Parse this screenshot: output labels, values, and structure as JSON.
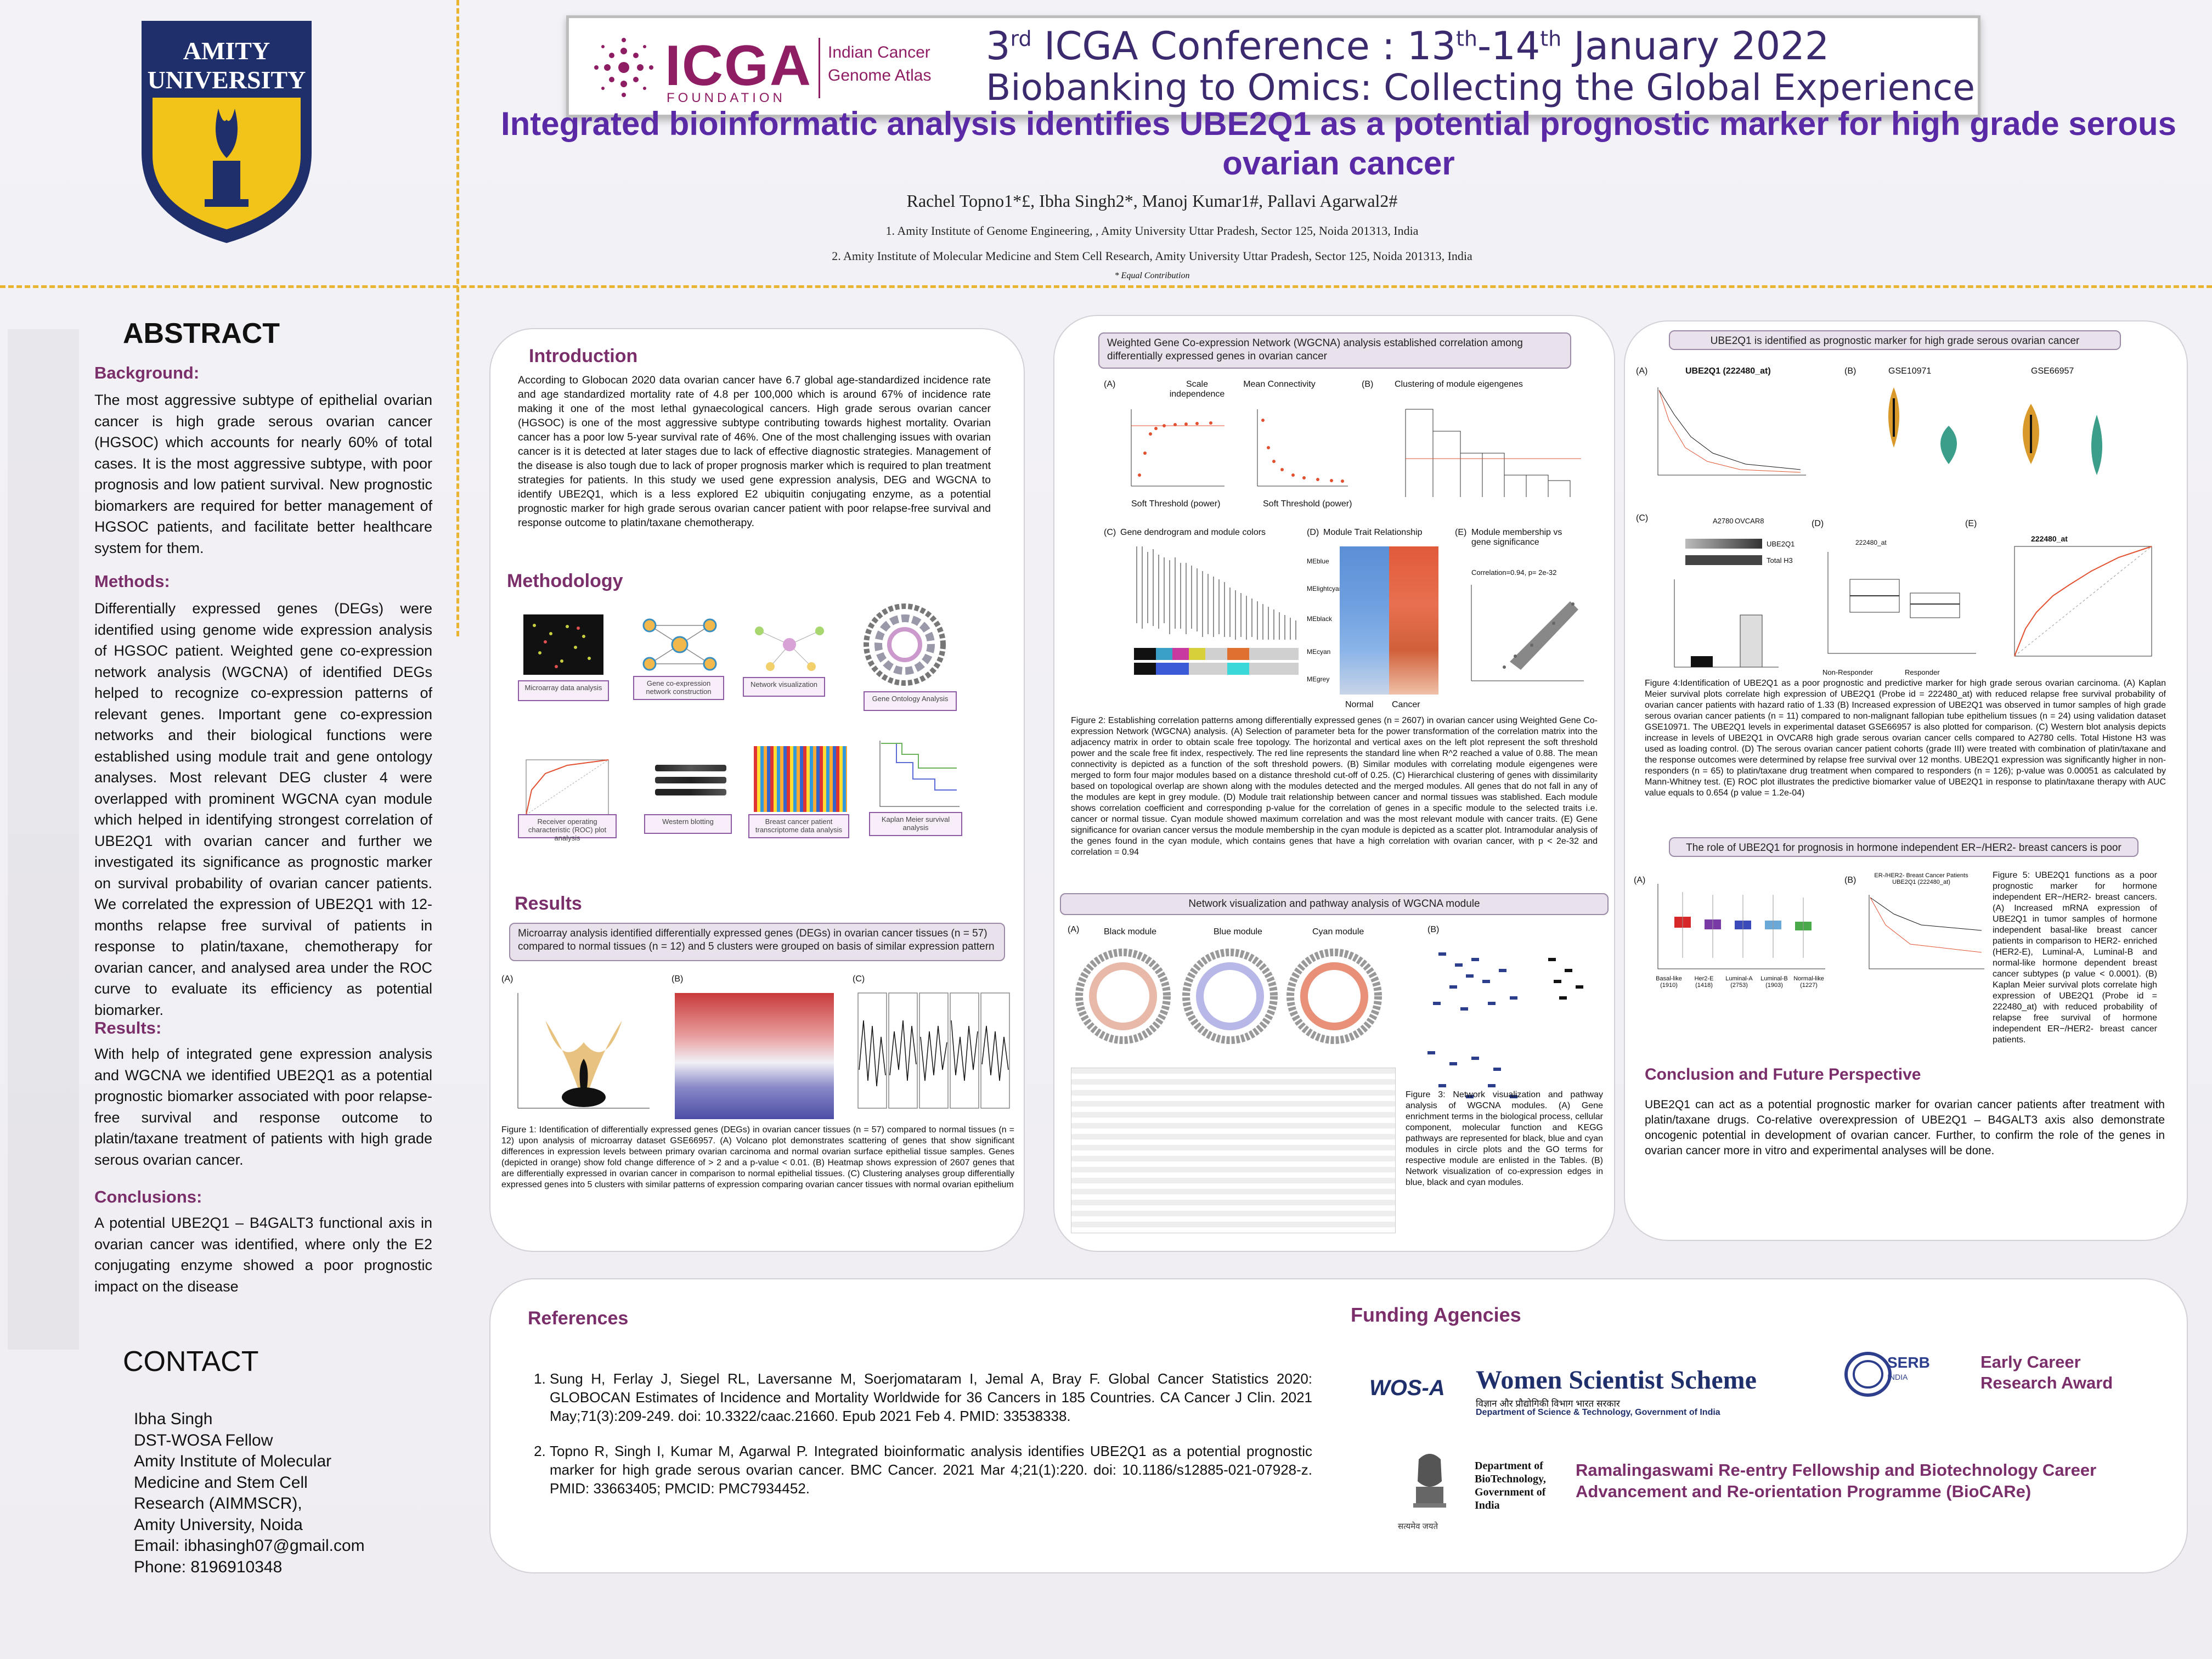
{
  "header": {
    "university": "AMITY UNIVERSITY",
    "icga_name": "ICGA",
    "icga_sub": "FOUNDATION",
    "icga_atlas_1": "Indian Cancer",
    "icga_atlas_2": "Genome Atlas",
    "conf_prefix": "3",
    "conf_sup1": "rd",
    "conf_mid": " ICGA Conference : 13",
    "conf_sup2": "th",
    "conf_mid2": "-14",
    "conf_sup3": "th",
    "conf_end": " January 2022",
    "conf_line2": "Biobanking to Omics: Collecting the Global Experience"
  },
  "title": "Integrated bioinformatic analysis identifies UBE2Q1 as a potential prognostic marker for high grade serous ovarian cancer",
  "authors": "Rachel Topno1*£, Ibha Singh2*, Manoj Kumar1#, Pallavi Agarwal2#",
  "affiliation1": "1. Amity Institute of Genome Engineering, , Amity University Uttar Pradesh, Sector 125, Noida 201313, India",
  "affiliation2": "2. Amity Institute of Molecular Medicine and Stem Cell Research, Amity University Uttar Pradesh, Sector 125, Noida 201313, India",
  "equal": "* Equal Contribution",
  "abstract": {
    "heading": "ABSTRACT",
    "background_h": "Background:",
    "background": "The most aggressive subtype of epithelial ovarian cancer is high grade serous ovarian cancer (HGSOC) which accounts for nearly 60% of total cases. It is the most aggressive subtype, with poor prognosis and low patient survival. New prognostic biomarkers are required for better management of HGSOC patients, and facilitate better healthcare system for them.",
    "methods_h": "Methods:",
    "methods": "Differentially expressed genes (DEGs) were identified using genome wide expression analysis of HGSOC patient. Weighted gene co-expression network analysis (WGCNA) of identified DEGs helped to recognize co-expression patterns of relevant genes. Important gene co-expression networks and their biological functions were established using module trait and gene ontology analyses. Most relevant DEG cluster 4 were overlapped with prominent WGCNA cyan module which helped in identifying strongest correlation of UBE2Q1 with ovarian cancer and further we investigated its significance as prognostic marker on survival probability of ovarian cancer patients. We correlated the expression of UBE2Q1 with 12-months relapse free survival of patients in response to platin/taxane, chemotherapy for ovarian cancer, and analysed area under the ROC curve to evaluate its efficiency as potential biomarker.",
    "results_h": "Results:",
    "results": "With help of integrated gene expression analysis and WGCNA we identified UBE2Q1 as a potential prognostic biomarker associated with poor relapse-free survival and response outcome to platin/taxane treatment of patients with high grade serous ovarian cancer.",
    "conclusions_h": "Conclusions:",
    "conclusions": "A potential UBE2Q1 – B4GALT3 functional axis in ovarian cancer was identified, where only the E2 conjugating enzyme showed a poor prognostic impact on the disease"
  },
  "contact": {
    "heading": "CONTACT",
    "lines": [
      "Ibha Singh",
      "DST-WOSA Fellow",
      "Amity Institute of Molecular",
      "Medicine and Stem Cell",
      "Research (AIMMSCR),",
      "Amity University, Noida",
      "Email: ibhasingh07@gmail.com",
      "Phone: 8196910348"
    ]
  },
  "intro": {
    "heading": "Introduction",
    "text": "According to Globocan 2020 data ovarian cancer have 6.7 global age-standardized incidence rate and age standardized mortality rate of 4.8 per 100,000 which is around 67% of incidence rate making it one of the most lethal gynaecological cancers. High grade serous ovarian cancer (HGSOC) is one of the most aggressive subtype contributing towards highest mortality. Ovarian cancer has a poor low 5-year survival rate of 46%. One of the most challenging issues with ovarian cancer is it is detected at later stages due to lack of effective diagnostic strategies. Management of the disease is also tough due to lack of proper prognosis marker which is required to plan treatment strategies for patients. In this study we used gene expression analysis, DEG and WGCNA to identify UBE2Q1, which is a less explored E2 ubiquitin conjugating enzyme, as a potential prognostic marker for high grade serous ovarian cancer patient with poor relapse-free survival and response outcome to platin/taxane chemotherapy."
  },
  "methodology": {
    "heading": "Methodology",
    "steps": [
      "Microarray data analysis",
      "Gene co-expression network construction",
      "Network visualization",
      "Gene Ontology Analysis",
      "Kaplan Meier survival analysis",
      "Breast cancer patient transcriptome data analysis",
      "Western blotting",
      "Receiver operating characteristic (ROC) plot analysis"
    ]
  },
  "results_sec": {
    "heading": "Results",
    "bar1": "Microarray analysis identified differentially expressed genes (DEGs) in ovarian cancer tissues (n = 57) compared to normal tissues (n = 12) and 5 clusters were grouped on basis of similar expression pattern",
    "fig1_caption": "Figure 1: Identification of differentially expressed genes (DEGs) in ovarian cancer tissues (n = 57) compared to normal tissues (n = 12) upon analysis of microarray dataset GSE66957. (A) Volcano plot demonstrates scattering of genes that show significant differences in expression levels between primary ovarian carcinoma and normal ovarian surface epithelial tissue samples. Genes (depicted in orange) show fold change difference of > 2 and a p-value < 0.01. (B) Heatmap shows expression of 2607 genes that are differentially expressed in ovarian cancer in comparison to normal epithelial tissues. (C) Clustering analyses group differentially expressed genes into 5 clusters with similar patterns of expression comparing ovarian cancer tissues with normal ovarian epithelium"
  },
  "wgcna": {
    "bar": "Weighted Gene Co-expression Network (WGCNA) analysis established correlation among differentially expressed genes in ovarian cancer",
    "labels": {
      "a": "(A)",
      "b": "(B)",
      "c": "(C)",
      "d": "(D)",
      "e": "(E)"
    },
    "a1_title": "Scale independence",
    "a2_title": "Mean Connectivity",
    "b_title": "Clustering of module eigengenes",
    "c_title": "Gene dendrogram and module colors",
    "d_title": "Module Trait Relationship",
    "e_title": "Module membership vs gene significance",
    "e_stat": "Correlation=0.94, p= 2e-32",
    "soft_label": "Soft Threshold (power)",
    "d_rows": [
      "MEblue",
      "MElightcyan",
      "MEblack",
      "MEcyan",
      "MEgrey"
    ],
    "d_cols": [
      "Normal",
      "Cancer"
    ],
    "fig2_caption": "Figure 2: Establishing correlation patterns among differentially expressed genes (n = 2607) in ovarian cancer using Weighted Gene Co-expression Network (WGCNA) analysis. (A) Selection of parameter beta for the power transformation of the correlation matrix into the adjacency matrix in order to obtain scale free topology. The horizontal and vertical axes on the left plot represent the soft threshold power and the scale free fit index, respectively. The red line represents the standard line when R^2 reached a value of 0.88. The mean connectivity is depicted as a function of the soft threshold powers. (B) Similar modules with correlating module eigengenes were merged to form four major modules based on a distance threshold cut-off of 0.25. (C) Hierarchical clustering of genes with dissimilarity based on topological overlap are shown along with the modules detected and the merged modules. All genes that do not fall in any of the modules are kept in grey module. (D) Module trait relationship between cancer and normal tissues was stablished. Each module shows correlation coefficient and corresponding p-value for the correlation of genes in a specific module to the selected traits i.e. cancer or normal tissue. Cyan module showed maximum correlation and was the most relevant module with cancer traits. (E) Gene significance for ovarian cancer versus the module membership in the cyan module is depicted as a scatter plot. Intramodular analysis of the genes found in the cyan module, which contains genes that have a high correlation with ovarian cancer, with p < 2e-32 and correlation = 0.94"
  },
  "network": {
    "bar": "Network visualization and pathway analysis of WGCNA module",
    "black": "Black module",
    "blue": "Blue module",
    "cyan": "Cyan module",
    "fig3_caption": "Figure 3: Network visualization and pathway analysis of WGCNA modules. (A) Gene enrichment terms in the biological process, cellular component, molecular function and KEGG pathways are represented for black, blue and cyan modules in circle plots and the GO terms for respective module are enlisted in the Tables. (B) Network visualization of co-expression edges in blue, black and cyan modules."
  },
  "ube2q1": {
    "bar": "UBE2Q1 is identified as prognostic marker for high grade serous ovarian cancer",
    "km_title": "UBE2Q1 (222480_at)",
    "gse1": "GSE10971",
    "gse2": "GSE66957",
    "roc_title": "222480_at",
    "d_title": "222480_at",
    "responder": "Responder",
    "nonresponder": "Non-Responder",
    "wb_a2780": "A2780",
    "wb_ovcar8": "OVCAR8",
    "wb_ube2q1": "UBE2Q1",
    "wb_h3": "Total H3",
    "fig4_caption": "Figure 4:Identification of UBE2Q1 as a poor prognostic and predictive marker for high grade serous ovarian carcinoma. (A) Kaplan Meier survival plots correlate high expression of UBE2Q1 (Probe id = 222480_at) with reduced relapse free survival probability of ovarian cancer patients with hazard ratio of 1.33 (B) Increased expression of UBE2Q1 was observed in tumor samples of high grade serous ovarian cancer patients (n = 11) compared to non-malignant fallopian tube epithelium tissues (n = 24) using validation dataset GSE10971. The UBE2Q1 levels in experimental dataset GSE66957 is also plotted for comparison. (C) Western blot analysis depicts increase in levels of UBE2Q1 in OVCAR8 high grade serous ovarian cancer cells compared to A2780 cells. Total Histone H3 was used as loading control. (D) The serous ovarian cancer patient cohorts (grade III) were treated with combination of platin/taxane and the response outcomes were determined by relapse free survival over 12 months. UBE2Q1 expression was significantly higher in non-responders (n = 65) to platin/taxane drug treatment when compared to responders (n = 126); p-value was 0.00051 as calculated by Mann-Whitney test. (E) ROC plot illustrates the predictive biomarker value of UBE2Q1 in response to platin/taxane therapy with AUC value equals to 0.654 (p value = 1.2e-04)"
  },
  "breast": {
    "bar": "The role of UBE2Q1 for prognosis in hormone independent ER−/HER2- breast cancers is poor",
    "km_title": "ER-/HER2- Breast Cancer Patients UBE2Q1 (222480_at)",
    "categories": [
      "Basal-like (1910)",
      "Her2-E (1418)",
      "Luminal-A (2753)",
      "Luminal-B (1903)",
      "Normal-like (1227)"
    ],
    "fig5_caption": "Figure 5: UBE2Q1 functions as a poor prognostic marker for hormone independent ER−/HER2- breast cancers. (A) Increased mRNA expression of UBE2Q1 in tumor samples of hormone independent basal-like breast cancer patients in comparison to HER2- enriched (HER2-E), Luminal-A, Luminal-B and normal-like hormone dependent breast cancer subtypes (p value < 0.0001). (B) Kaplan Meier survival plots correlate high expression of UBE2Q1 (Probe id = 222480_at) with reduced probability of relapse free survival of hormone independent ER−/HER2- breast cancer patients."
  },
  "conclusion": {
    "heading": "Conclusion and Future Perspective",
    "text": "UBE2Q1 can act as a potential prognostic marker for ovarian cancer patients after treatment with platin/taxane drugs. Co-relative overexpression of UBE2Q1 – B4GALT3 axis also demonstrate oncogenic potential in development of ovarian cancer. Further, to confirm the role of the genes in ovarian cancer more in vitro and experimental analyses will be done."
  },
  "references": {
    "heading": "References",
    "items": [
      "Sung H, Ferlay J, Siegel RL, Laversanne M, Soerjomataram I, Jemal A, Bray F. Global Cancer Statistics 2020: GLOBOCAN Estimates of Incidence and Mortality Worldwide for 36 Cancers in 185 Countries. CA Cancer J Clin. 2021 May;71(3):209-249. doi: 10.3322/caac.21660. Epub 2021 Feb 4. PMID: 33538338.",
      "Topno R, Singh I, Kumar M, Agarwal P. Integrated bioinformatic analysis identifies UBE2Q1 as a potential prognostic marker for high grade serous ovarian cancer. BMC Cancer. 2021 Mar 4;21(1):220. doi: 10.1186/s12885-021-07928-z. PMID: 33663405; PMCID: PMC7934452."
    ]
  },
  "funding": {
    "heading": "Funding Agencies",
    "wosa": "WOS-A",
    "wss": "Women Scientist Scheme",
    "wss_hindi": "विज्ञान और प्रौद्योगिकी विभाग भारत सरकार",
    "wss_dept": "Department of Science & Technology, Government of India",
    "serb": "SERB",
    "serb_india": "INDIA",
    "ecra": "Early Career Research Award",
    "dbt": "Department of BioTechnology, Government of India",
    "dbt_motto": "सत्यमेव जयते",
    "biocare": "Ramalingaswami Re-entry Fellowship and Biotechnology Career Advancement and Re-orientation Programme (BioCARe)"
  },
  "colors": {
    "purple_title": "#5a2aa6",
    "section": "#7a2f6b",
    "gold": "#e9b530",
    "navy": "#1f2f6b",
    "orange": "#d99a2b",
    "cyan": "#3a9e8a"
  }
}
